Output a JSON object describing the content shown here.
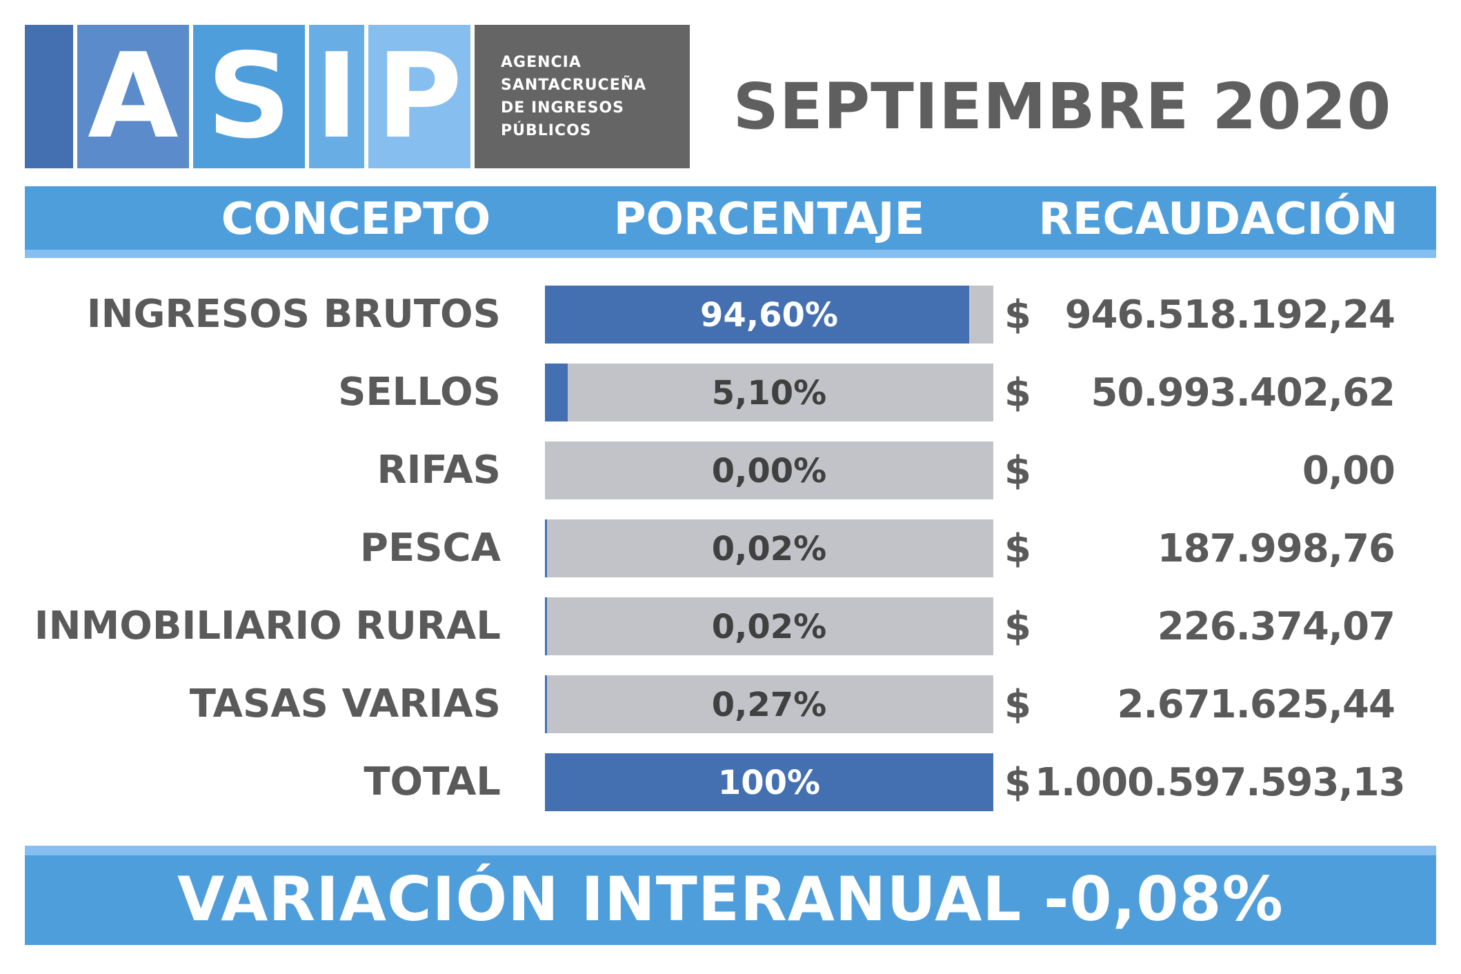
{
  "logo": {
    "letters": [
      "A",
      "S",
      "I",
      "P"
    ],
    "text_lines": [
      "AGENCIA",
      "SANTACRUCEÑA",
      "DE INGRESOS",
      "PÚBLICOS"
    ],
    "colors": [
      "#4470b2",
      "#5b8bcb",
      "#4f9edc",
      "#68aee4",
      "#86bfef"
    ]
  },
  "period": "SEPTIEMBRE 2020",
  "header": {
    "concept": "CONCEPTO",
    "percentage": "PORCENTAJE",
    "collection": "RECAUDACIÓN"
  },
  "chart_data": {
    "type": "bar",
    "orientation": "horizontal",
    "categories": [
      "INGRESOS BRUTOS",
      "SELLOS",
      "RIFAS",
      "PESCA",
      "INMOBILIARIO RURAL",
      "TASAS VARIAS",
      "TOTAL"
    ],
    "values": [
      94.6,
      5.1,
      0.0,
      0.02,
      0.02,
      0.27,
      100
    ],
    "value_labels": [
      "94,60%",
      "5,10%",
      "0,00%",
      "0,02%",
      "0,02%",
      "0,27%",
      "100%"
    ],
    "amounts": [
      "946.518.192,24",
      "50.993.402,62",
      "0,00",
      "187.998,76",
      "226.374,07",
      "2.671.625,44",
      "1.000.597.593,13"
    ],
    "currency_symbol": "$",
    "xlim": [
      0,
      100
    ],
    "colors": {
      "fill": "#4470b2",
      "track": "#c2c3c8"
    }
  },
  "footer": "VARIACIÓN INTERANUAL -0,08%"
}
